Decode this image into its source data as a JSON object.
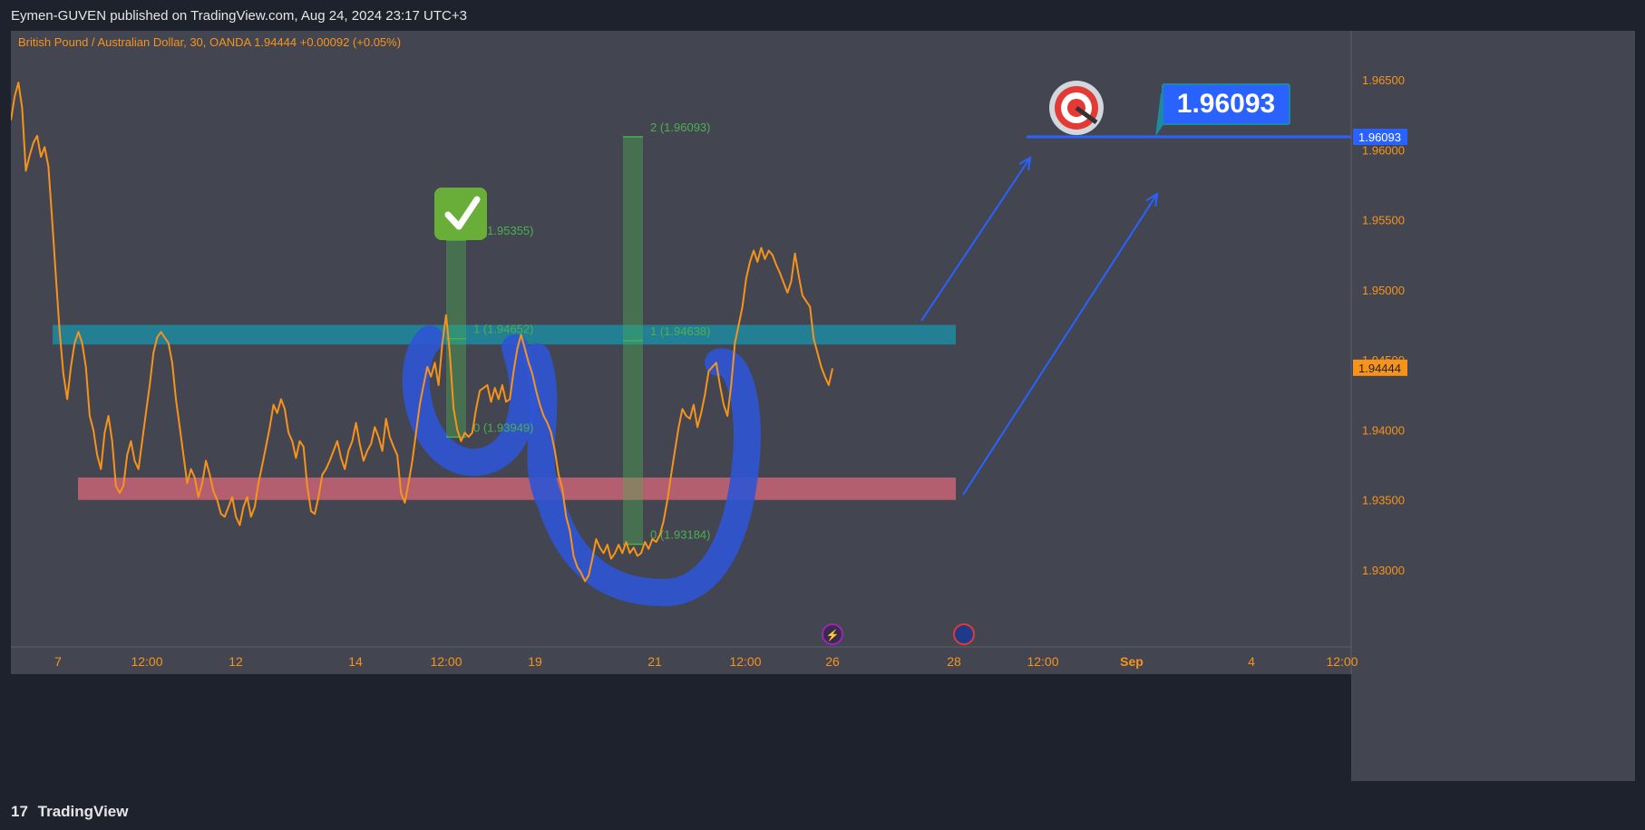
{
  "header": {
    "publisher_text": "Eymen-GUVEN published on TradingView.com, Aug 24, 2024 23:17 UTC+3"
  },
  "footer": {
    "brand": "TradingView",
    "brand_mark": "17"
  },
  "colors": {
    "chart_bg": "#434651",
    "frame_bg": "#1e222d",
    "price_line": "#f7931a",
    "resistance_zone": "#1c8aa0",
    "support_zone": "#c86474",
    "ellipse_stroke": "#2f55d4",
    "target_line": "#2962ff",
    "fib_box": "#4caf50",
    "axis_text": "#f7931a"
  },
  "chart_data": {
    "type": "line",
    "title": "British Pound / Australian Dollar, 30, OANDA",
    "legend_values": {
      "last": "1.94444",
      "change": "+0.00092 (+0.05%)"
    },
    "x_tick_labels": [
      "7",
      "12:00",
      "12",
      "14",
      "12:00",
      "19",
      "21",
      "12:00",
      "26",
      "28",
      "12:00",
      "Sep",
      "4",
      "12:00"
    ],
    "y_ticks": [
      "1.96500",
      "1.96000",
      "1.95500",
      "1.95000",
      "1.94500",
      "1.94000",
      "1.93500",
      "1.93000"
    ],
    "ylim": [
      1.9245,
      1.9685
    ],
    "last_price_label": "1.94444",
    "target_price_label": "1.96093",
    "series": [
      {
        "values": [
          1.9621,
          1.9638,
          1.9648,
          1.963,
          1.9585,
          1.9596,
          1.9605,
          1.961,
          1.9595,
          1.9602,
          1.9588,
          1.955,
          1.951,
          1.947,
          1.944,
          1.9422,
          1.9445,
          1.9462,
          1.947,
          1.9462,
          1.9445,
          1.941,
          1.94,
          1.9382,
          1.9372,
          1.9398,
          1.941,
          1.9392,
          1.936,
          1.9355,
          1.936,
          1.9382,
          1.9392,
          1.9378,
          1.9372,
          1.9392,
          1.9412,
          1.9432,
          1.9455,
          1.9466,
          1.947,
          1.9466,
          1.9462,
          1.9448,
          1.9422,
          1.9402,
          1.9382,
          1.9362,
          1.9372,
          1.9366,
          1.9352,
          1.9362,
          1.9378,
          1.9368,
          1.9356,
          1.935,
          1.934,
          1.9338,
          1.9345,
          1.9352,
          1.9338,
          1.9332,
          1.9345,
          1.9352,
          1.9338,
          1.9345,
          1.9362,
          1.9375,
          1.9388,
          1.9402,
          1.9418,
          1.9412,
          1.9422,
          1.9415,
          1.9398,
          1.9392,
          1.938,
          1.9392,
          1.9388,
          1.936,
          1.9342,
          1.934,
          1.9352,
          1.9368,
          1.9372,
          1.9378,
          1.9385,
          1.9392,
          1.938,
          1.9372,
          1.9385,
          1.9392,
          1.9405,
          1.939,
          1.9378,
          1.9385,
          1.939,
          1.9402,
          1.9395,
          1.9385,
          1.9408,
          1.9395,
          1.9388,
          1.9382,
          1.9355,
          1.9348,
          1.9362,
          1.9378,
          1.9398,
          1.9418,
          1.9432,
          1.9445,
          1.9438,
          1.9448,
          1.9432,
          1.9462,
          1.9482,
          1.9455,
          1.9415,
          1.94,
          1.9392,
          1.9398,
          1.9395,
          1.9398,
          1.9415,
          1.9428,
          1.943,
          1.9432,
          1.942,
          1.943,
          1.9422,
          1.9432,
          1.942,
          1.9422,
          1.9442,
          1.9458,
          1.9468,
          1.9458,
          1.9448,
          1.944,
          1.9428,
          1.9418,
          1.941,
          1.9405,
          1.9398,
          1.9385,
          1.9368,
          1.9358,
          1.9338,
          1.9328,
          1.931,
          1.9302,
          1.9298,
          1.9292,
          1.9296,
          1.9308,
          1.9322,
          1.9316,
          1.9312,
          1.9318,
          1.9308,
          1.9312,
          1.9318,
          1.9312,
          1.932,
          1.9312,
          1.9316,
          1.931,
          1.9312,
          1.932,
          1.9315,
          1.9322,
          1.932,
          1.9325,
          1.9335,
          1.935,
          1.9368,
          1.9385,
          1.9402,
          1.9415,
          1.941,
          1.9408,
          1.9418,
          1.9402,
          1.9412,
          1.9425,
          1.9442,
          1.9445,
          1.9448,
          1.9432,
          1.9418,
          1.941,
          1.9432,
          1.9462,
          1.9475,
          1.9488,
          1.9508,
          1.952,
          1.9528,
          1.952,
          1.953,
          1.9522,
          1.9528,
          1.9525,
          1.9518,
          1.9512,
          1.9505,
          1.9498,
          1.9506,
          1.9526,
          1.951,
          1.9496,
          1.9492,
          1.9488,
          1.9465,
          1.9455,
          1.9445,
          1.9438,
          1.9432,
          1.9444
        ]
      }
    ],
    "zones": [
      {
        "type": "resistance",
        "from": 1.9461,
        "to": 1.9475
      },
      {
        "type": "support",
        "from": 1.935,
        "to": 1.9366
      }
    ],
    "fib_measures": [
      {
        "labels": [
          "2 (1.95355)",
          "1 (1.94652)",
          "0 (1.93949)"
        ],
        "top": 1.95355,
        "mid": 1.94652,
        "bottom": 1.93949
      },
      {
        "labels": [
          "2 (1.96093)",
          "1 (1.94638)",
          "0 (1.93184)"
        ],
        "top": 1.96093,
        "mid": 1.94638,
        "bottom": 1.93184
      }
    ],
    "target_callout": "1.96093",
    "grid": false,
    "legend_position": "top-left"
  }
}
